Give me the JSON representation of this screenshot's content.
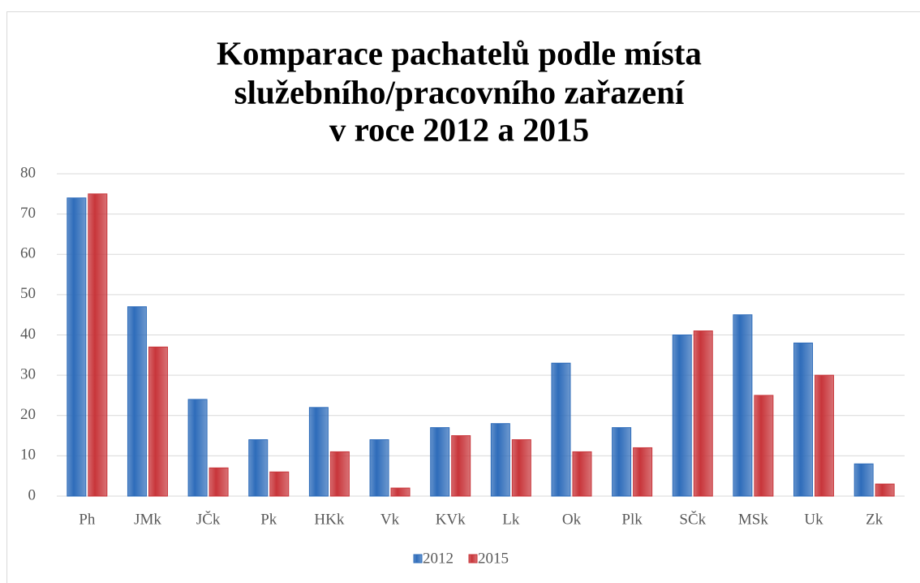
{
  "chart_data": {
    "type": "bar",
    "title": [
      "Komparace pachatelů podle místa",
      "služebního/pracovního zařazení",
      "v roce 2012 a 2015"
    ],
    "categories": [
      "Ph",
      "JMk",
      "JČk",
      "Pk",
      "HKk",
      "Vk",
      "KVk",
      "Lk",
      "Ok",
      "Plk",
      "SČk",
      "MSk",
      "Uk",
      "Zk"
    ],
    "series": [
      {
        "name": "2012",
        "color": "#2e6cba",
        "values": [
          74,
          47,
          24,
          14,
          22,
          14,
          17,
          18,
          33,
          17,
          40,
          45,
          38,
          8
        ]
      },
      {
        "name": "2015",
        "color": "#c8353a",
        "values": [
          75,
          37,
          7,
          6,
          11,
          2,
          15,
          14,
          11,
          12,
          41,
          25,
          30,
          3
        ]
      }
    ],
    "ylim": [
      0,
      80
    ],
    "yticks": [
      0,
      10,
      20,
      30,
      40,
      50,
      60,
      70,
      80
    ],
    "grid": true,
    "legend": "bottom"
  }
}
